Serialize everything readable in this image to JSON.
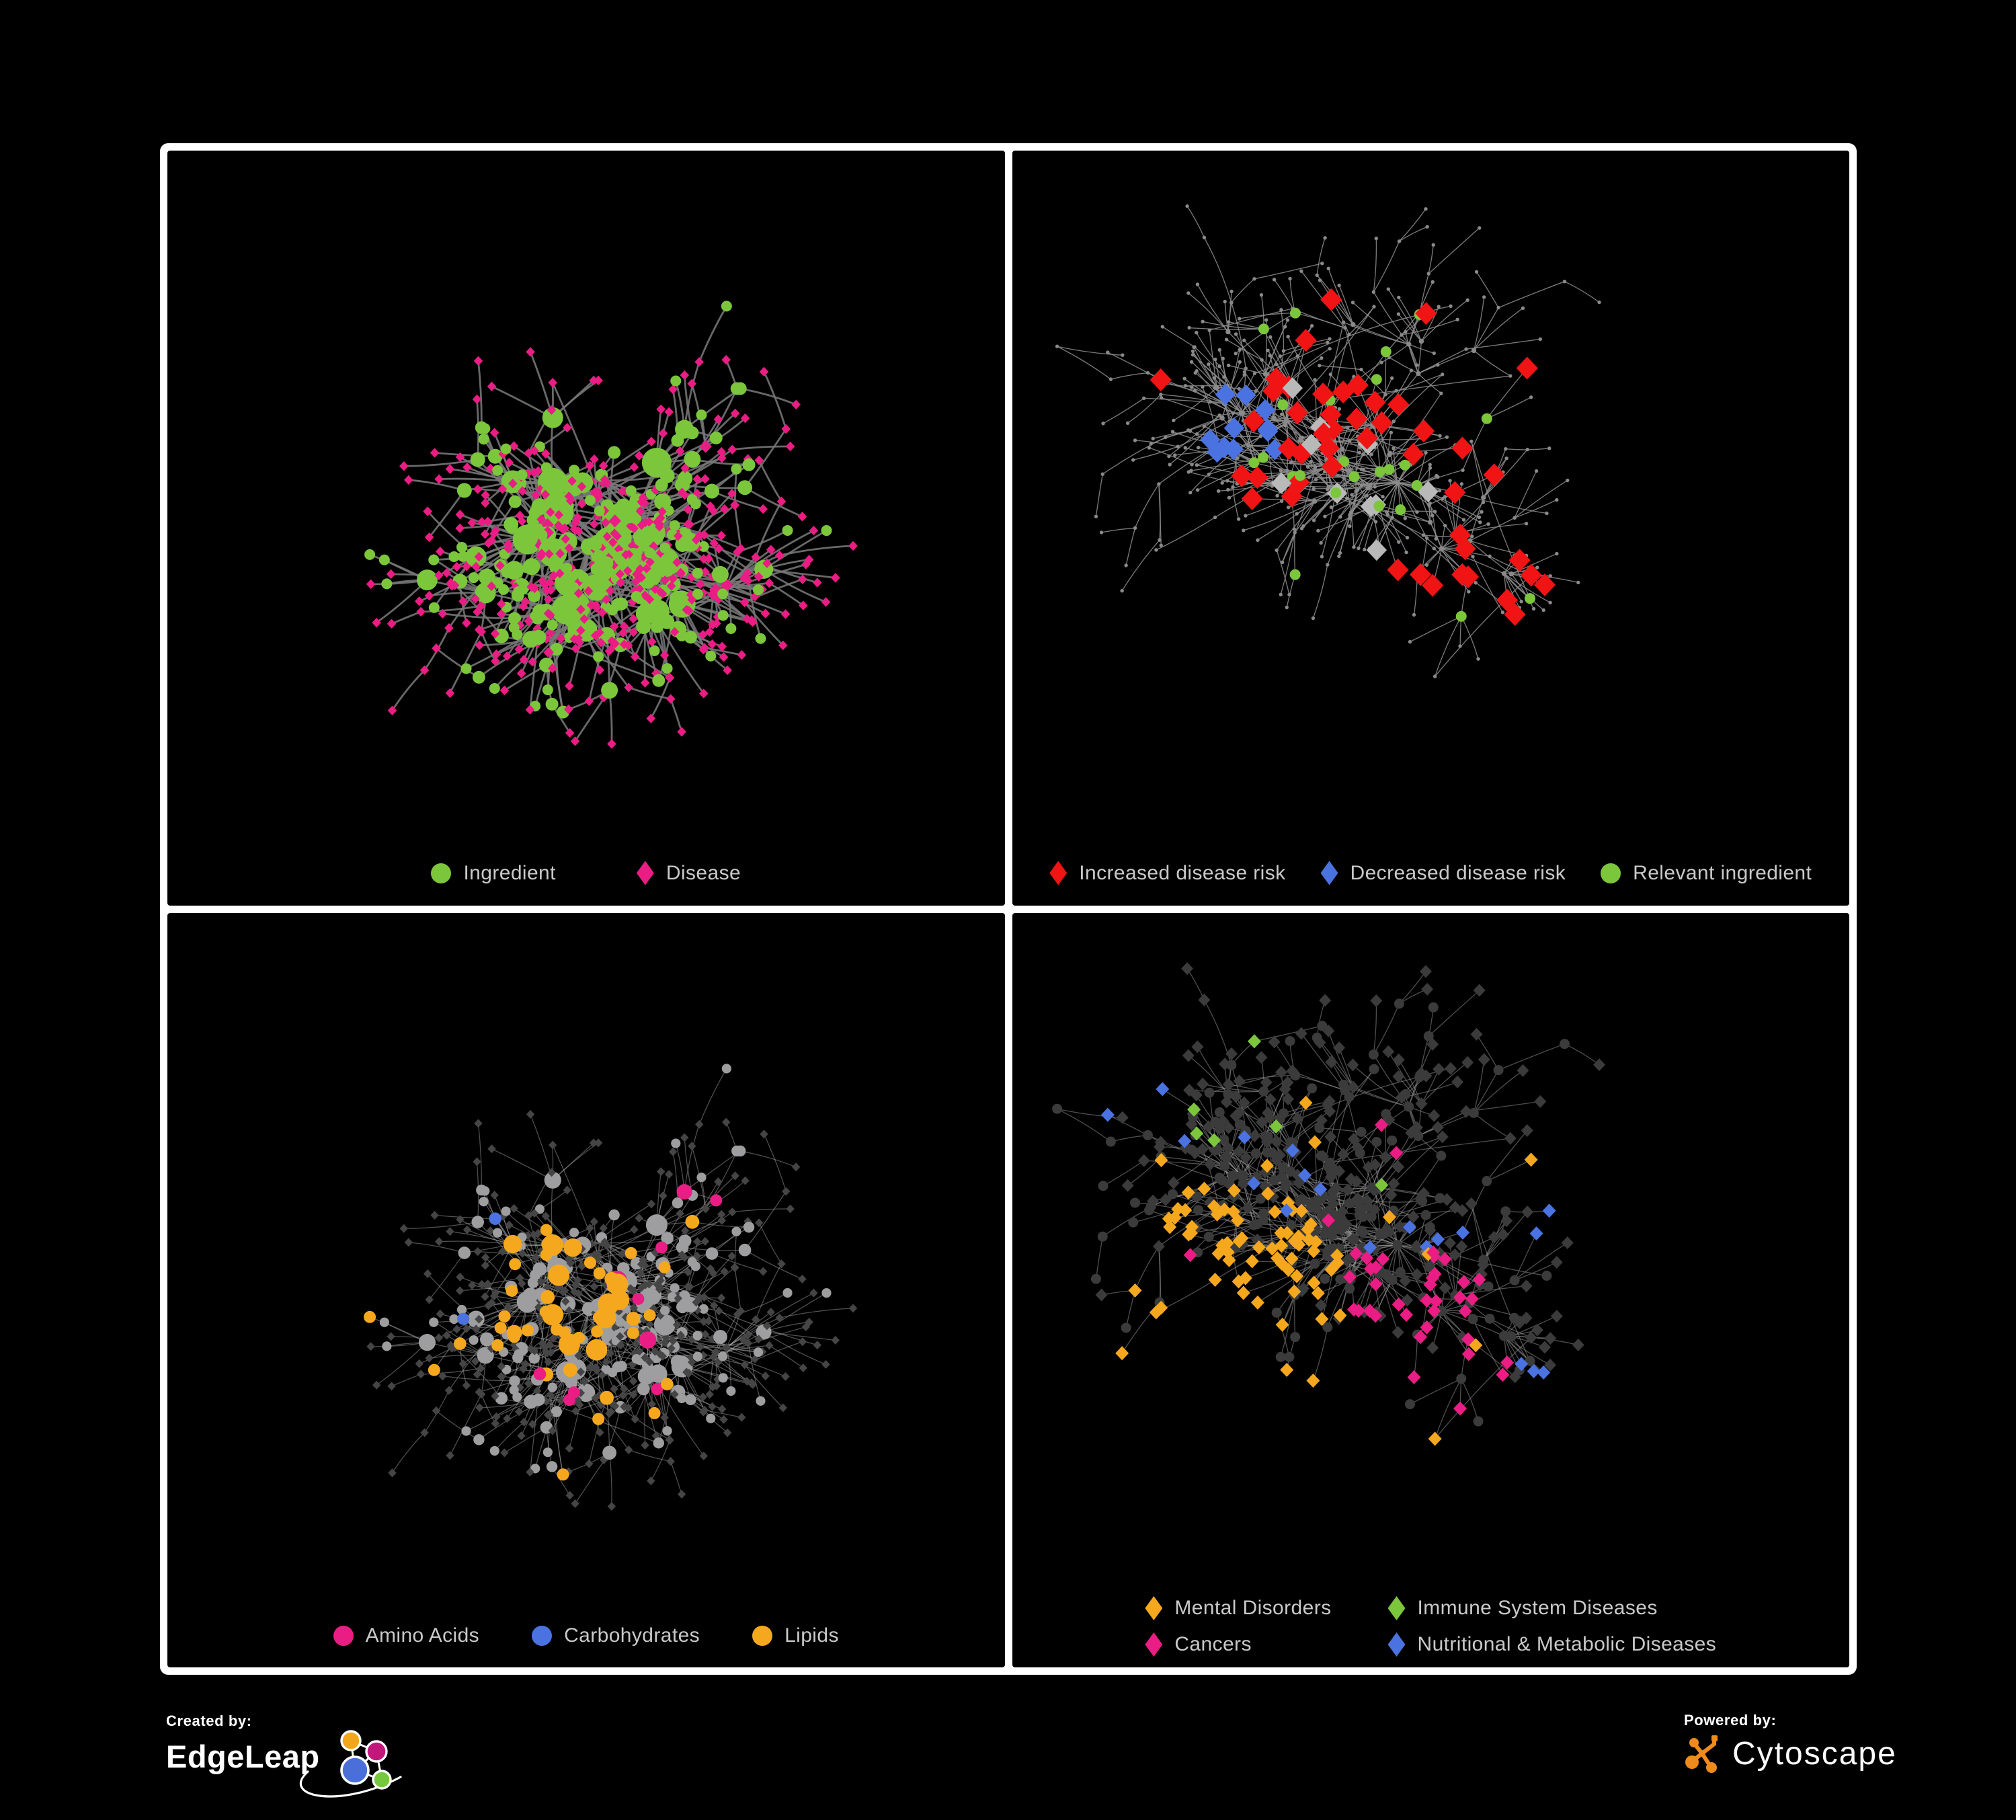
{
  "figure": {
    "background": "#000000",
    "frame_color": "#FFFFFF",
    "legend_text_color": "#C9C9C9"
  },
  "panels": [
    {
      "name": "ingredient-disease-network",
      "legend": [
        {
          "label": "Ingredient",
          "shape": "circle",
          "color": "#7CC63C"
        },
        {
          "label": "Disease",
          "shape": "diamond",
          "color": "#EA1D84"
        }
      ],
      "layout": "A",
      "style": {
        "type": "bipartite",
        "edge": {
          "color": "#787878",
          "width": 2.8,
          "opacity": 0.88
        },
        "hub_color": "#7CC63C",
        "leaf_color": "#EA1D84",
        "diamond_size": 7.2,
        "hub_base_r": 6.5,
        "hub_r_per_deg": 1.5,
        "hub_r_max": 22
      }
    },
    {
      "name": "disease-risk-network",
      "legend": [
        {
          "label": "Increased disease risk",
          "shape": "diamond",
          "color": "#F01414"
        },
        {
          "label": "Decreased disease risk",
          "shape": "diamond",
          "color": "#4A72E0"
        },
        {
          "label": "Relevant ingredient",
          "shape": "circle",
          "color": "#7CC63C"
        }
      ],
      "layout": "B",
      "style": {
        "type": "risk",
        "edge": {
          "color": "#8E8E8E",
          "width": 1.35,
          "opacity": 0.85
        },
        "base_color": "#8A8A8A",
        "base_r": 2.7,
        "hub_r": 3.7,
        "regions": [
          {
            "c": [
              0.45,
              0.41
            ],
            "r": 0.23,
            "p": 0.14,
            "shape": "diamond",
            "color": "#F01414",
            "s": 17,
            "on": "diamond",
            "scatter": 0.004
          },
          {
            "c": [
              0.64,
              0.62
            ],
            "r": 0.09,
            "p": 0.3,
            "shape": "diamond",
            "color": "#F01414",
            "s": 17,
            "on": "diamond"
          },
          {
            "c": [
              0.28,
              0.37
            ],
            "r": 0.055,
            "p": 0.55,
            "shape": "diamond",
            "color": "#4A72E0",
            "s": 16,
            "on": "diamond"
          },
          {
            "c": [
              0.87,
              0.25
            ],
            "r": 0.04,
            "p": 0.8,
            "shape": "diamond",
            "color": "#4A72E0",
            "s": 16,
            "on": "diamond"
          },
          {
            "c": [
              0.46,
              0.43
            ],
            "r": 0.2,
            "p": 0.05,
            "shape": "diamond",
            "color": "#B9B9B9",
            "s": 16,
            "on": "diamond"
          },
          {
            "c": [
              0.43,
              0.4
            ],
            "r": 0.26,
            "p": 0.13,
            "shape": "circle",
            "color": "#7CC63C",
            "s": 8,
            "on": "circle"
          },
          {
            "c": [
              0.7,
              0.55
            ],
            "r": 0.12,
            "p": 0.12,
            "shape": "circle",
            "color": "#7CC63C",
            "s": 8,
            "on": "circle",
            "scatter": 0.012
          }
        ]
      }
    },
    {
      "name": "nutrient-category-network",
      "legend": [
        {
          "label": "Amino Acids",
          "shape": "circle",
          "color": "#EA1D84"
        },
        {
          "label": "Carbohydrates",
          "shape": "circle",
          "color": "#4A72E0"
        },
        {
          "label": "Lipids",
          "shape": "circle",
          "color": "#F5A81E"
        }
      ],
      "layout": "A",
      "style": {
        "type": "nutrients",
        "edge": {
          "color": "#B3B3B3",
          "width": 1.25,
          "opacity": 0.45
        },
        "circle_color": "#9E9EA0",
        "diamond_color": "#454545",
        "diamond_size": 6.5,
        "regions": [
          {
            "c": [
              0.5,
              0.24
            ],
            "r": 0.13,
            "p": 0.55,
            "color": "#F5A81E",
            "scatter": 0.05
          },
          {
            "c": [
              0.45,
              0.52
            ],
            "r": 0.1,
            "p": 0.42,
            "color": "#F5A81E"
          },
          {
            "c": [
              0.44,
              0.21
            ],
            "r": 0.06,
            "p": 0.5,
            "color": "#4A72E0",
            "scatter": 0.014
          },
          {
            "c": [
              0.0,
              0.0
            ],
            "r": 0.0,
            "p": 0.0,
            "color": "#EA1D84",
            "scatter": 0.058
          }
        ]
      }
    },
    {
      "name": "disease-category-network",
      "legend": [
        {
          "label": "Mental Disorders",
          "shape": "diamond",
          "color": "#F5A81E"
        },
        {
          "label": "Immune System Diseases",
          "shape": "diamond",
          "color": "#7CC63C"
        },
        {
          "label": "Cancers",
          "shape": "diamond",
          "color": "#EA1D84"
        },
        {
          "label": "Nutritional & Metabolic Diseases",
          "shape": "diamond",
          "color": "#4A72E0"
        }
      ],
      "layout": "B",
      "style": {
        "type": "categories",
        "edge": {
          "color": "#9E9E9E",
          "width": 1.3,
          "opacity": 0.5
        },
        "base_color": "#3B3B3B",
        "diamond_size": 9.5,
        "hub_circle_r": 7.5,
        "regions": [
          {
            "c": [
              0.26,
              0.52
            ],
            "r": 0.16,
            "p": 0.72,
            "color": "#F5A81E",
            "scatter": 0.02
          },
          {
            "c": [
              0.47,
              0.58
            ],
            "r": 0.14,
            "p": 0.6,
            "color": "#EA1D84"
          },
          {
            "c": [
              0.86,
              0.32
            ],
            "r": 0.05,
            "p": 0.5,
            "color": "#EA1D84",
            "scatter": 0.012
          },
          {
            "c": [
              0.64,
              0.62
            ],
            "r": 0.08,
            "p": 0.55,
            "color": "#4A72E0"
          },
          {
            "c": [
              0.76,
              0.34
            ],
            "r": 0.13,
            "p": 0.45,
            "color": "#4A72E0",
            "scatter": 0.05
          },
          {
            "c": [
              0.5,
              0.5
            ],
            "r": 0.0,
            "p": 0.0,
            "color": "#7CC63C",
            "scatter": 0.02
          }
        ]
      }
    }
  ],
  "networks": {
    "layouts": {
      "A": {
        "seed": 20240607,
        "nodes": 640,
        "extra_edge_ratio": 0.055
      },
      "B": {
        "seed": 99173,
        "nodes": 560,
        "extra_edge_ratio": 0.05
      }
    }
  },
  "footer": {
    "created_by_label": "Created by:",
    "brand_left": "EdgeLeap",
    "powered_by_label": "Powered by:",
    "brand_right": "Cytoscape",
    "edgeleap_colors": {
      "orange": "#F2A71B",
      "magenta": "#C2187C",
      "blue": "#4A6FD8",
      "green": "#76C93F"
    },
    "cytoscape_color": "#EF8B1C"
  }
}
